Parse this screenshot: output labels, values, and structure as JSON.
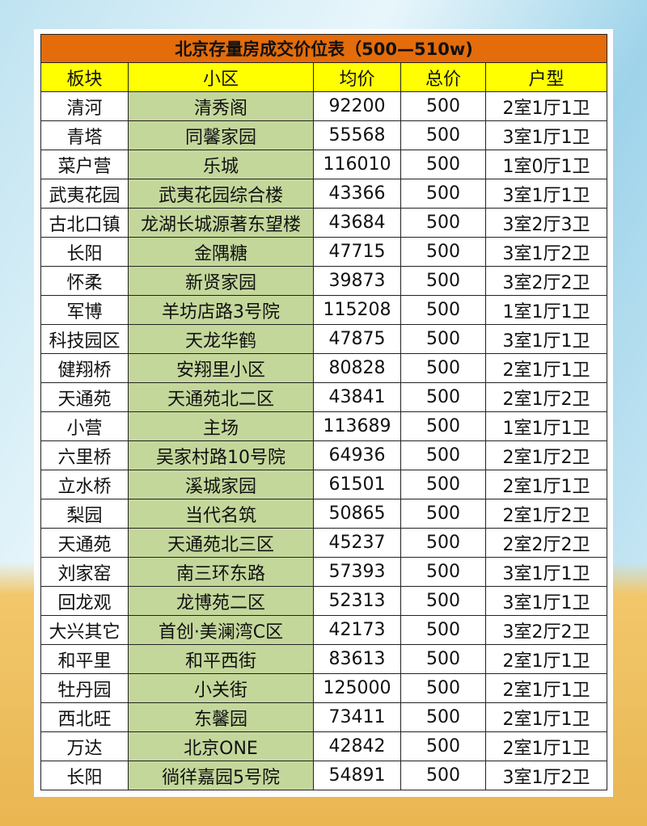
{
  "title": "北京存量房成交价位表（500—510w)",
  "table": {
    "header": [
      "板块",
      "小区",
      "均价",
      "总价",
      "户型"
    ],
    "rows": [
      [
        "清河",
        "清秀阁",
        92200,
        500,
        "2室1厅1卫"
      ],
      [
        "青塔",
        "同馨家园",
        55568,
        500,
        "3室1厅1卫"
      ],
      [
        "菜户营",
        "乐城",
        116010,
        500,
        "1室0厅1卫"
      ],
      [
        "武夷花园",
        "武夷花园综合楼",
        43366,
        500,
        "3室1厅1卫"
      ],
      [
        "古北口镇",
        "龙湖长城源著东望楼",
        43684,
        500,
        "3室2厅3卫"
      ],
      [
        "长阳",
        "金隅糖",
        47715,
        500,
        "3室1厅2卫"
      ],
      [
        "怀柔",
        "新贤家园",
        39873,
        500,
        "3室2厅2卫"
      ],
      [
        "军博",
        "羊坊店路3号院",
        115208,
        500,
        "1室1厅1卫"
      ],
      [
        "科技园区",
        "天龙华鹤",
        47875,
        500,
        "3室1厅1卫"
      ],
      [
        "健翔桥",
        "安翔里小区",
        80828,
        500,
        "2室1厅1卫"
      ],
      [
        "天通苑",
        "天通苑北二区",
        43841,
        500,
        "2室1厅2卫"
      ],
      [
        "小营",
        "主场",
        113689,
        500,
        "1室1厅1卫"
      ],
      [
        "六里桥",
        "吴家村路10号院",
        64936,
        500,
        "2室1厅2卫"
      ],
      [
        "立水桥",
        "溪城家园",
        61501,
        500,
        "2室1厅1卫"
      ],
      [
        "梨园",
        "当代名筑",
        50865,
        500,
        "2室1厅2卫"
      ],
      [
        "天通苑",
        "天通苑北三区",
        45237,
        500,
        "2室2厅2卫"
      ],
      [
        "刘家窑",
        "南三环东路",
        57393,
        500,
        "3室1厅1卫"
      ],
      [
        "回龙观",
        "龙博苑二区",
        52313,
        500,
        "3室1厅1卫"
      ],
      [
        "大兴其它",
        "首创·美澜湾C区",
        42173,
        500,
        "3室2厅2卫"
      ],
      [
        "和平里",
        "和平西街",
        83613,
        500,
        "2室1厅1卫"
      ],
      [
        "牡丹园",
        "小关街",
        125000,
        500,
        "2室1厅1卫"
      ],
      [
        "西北旺",
        "东馨园",
        73411,
        500,
        "2室1厅1卫"
      ],
      [
        "万达",
        "北京ONE",
        42842,
        500,
        "2室1厅1卫"
      ],
      [
        "长阳",
        "徜徉嘉园5号院",
        54891,
        500,
        "3室1厅2卫"
      ]
    ]
  }
}
